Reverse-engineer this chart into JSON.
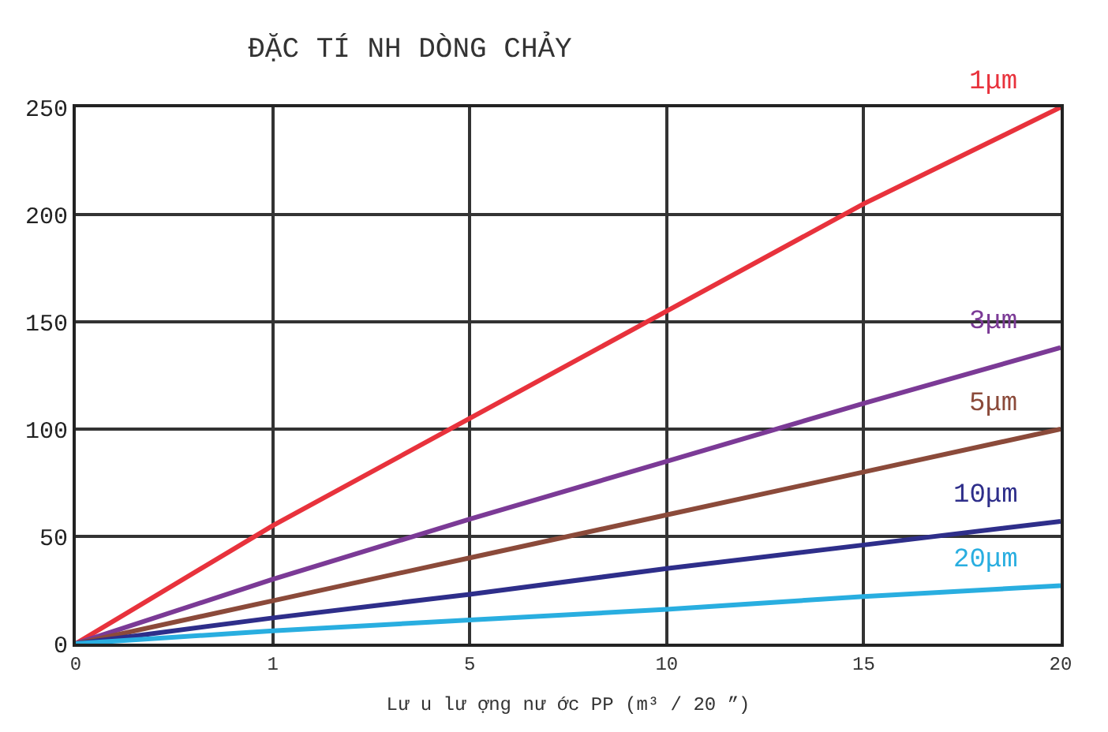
{
  "chart_data": {
    "type": "line",
    "title": "ĐẶC TÍ NH DÒNG CHẢY",
    "xlabel": "Lư u lư ợng nư ớc PP (m³ / 20 ”)",
    "categories": [
      "0",
      "1",
      "5",
      "10",
      "15",
      "20"
    ],
    "series": [
      {
        "name": "1μm",
        "color": "#e8323c",
        "values": [
          0,
          55,
          105,
          155,
          205,
          250
        ]
      },
      {
        "name": "3μm",
        "color": "#7b3a96",
        "values": [
          0,
          30,
          58,
          85,
          112,
          138
        ]
      },
      {
        "name": "5μm",
        "color": "#8b4a3a",
        "values": [
          0,
          20,
          40,
          60,
          80,
          100
        ]
      },
      {
        "name": "10μm",
        "color": "#2e2e8a",
        "values": [
          0,
          12,
          23,
          35,
          46,
          57
        ]
      },
      {
        "name": "20μm",
        "color": "#29aee0",
        "values": [
          0,
          6,
          11,
          16,
          22,
          27
        ]
      }
    ],
    "ylim": [
      0,
      250
    ],
    "yticks": [
      0,
      50,
      100,
      150,
      200,
      250
    ],
    "grid": true,
    "legend": false,
    "marker": "none",
    "line_style": "solid"
  }
}
